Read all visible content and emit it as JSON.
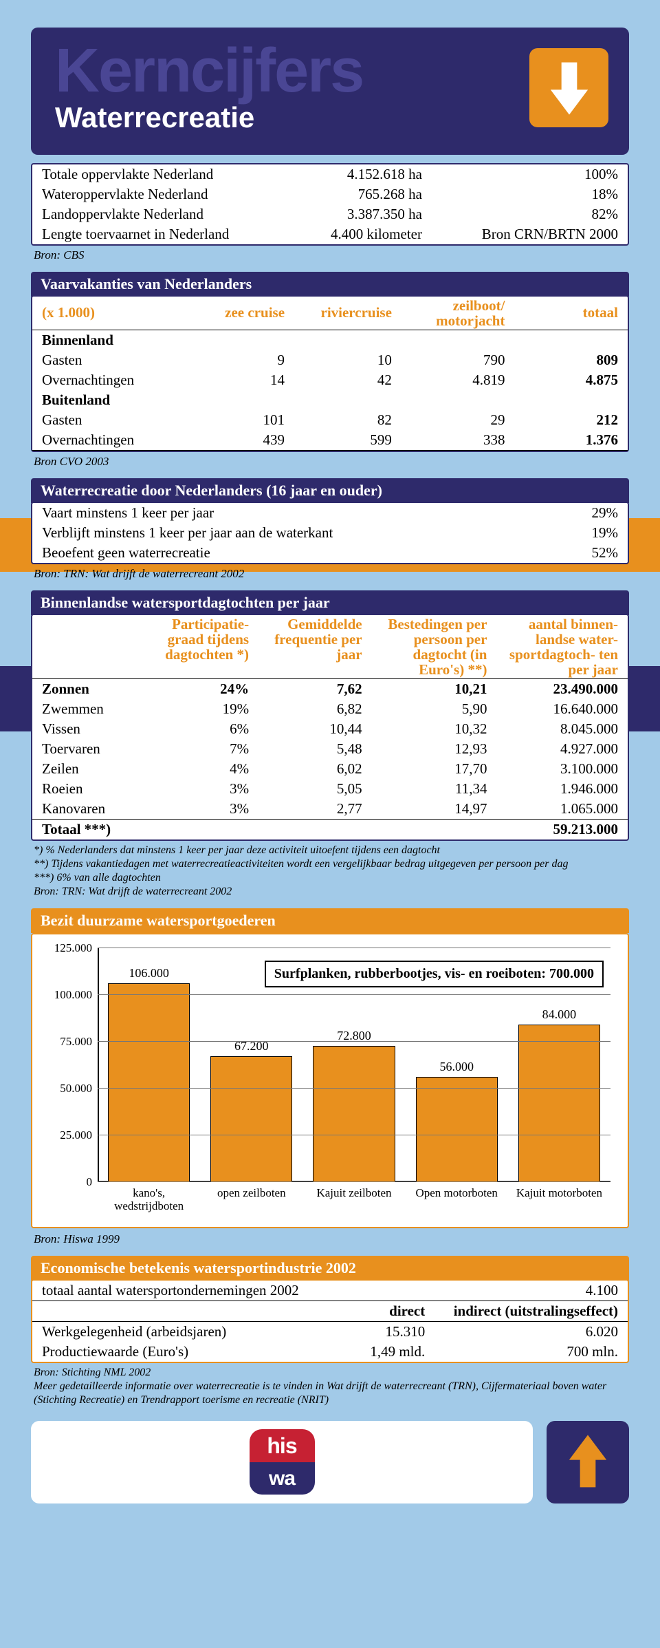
{
  "header": {
    "big": "Kerncijfers",
    "sub": "Waterrecreatie"
  },
  "surface": {
    "rows": [
      {
        "label": "Totale oppervlakte Nederland",
        "val": "4.152.618 ha",
        "pct": "100%"
      },
      {
        "label": "Wateroppervlakte Nederland",
        "val": "765.268 ha",
        "pct": "18%"
      },
      {
        "label": "Landoppervlakte Nederland",
        "val": "3.387.350 ha",
        "pct": "82%"
      },
      {
        "label": "Lengte toervaarnet in Nederland",
        "val": "4.400 kilometer",
        "pct": "Bron CRN/BRTN 2000"
      }
    ],
    "source": "Bron: CBS"
  },
  "vaarvakanties": {
    "title": "Vaarvakanties van Nederlanders",
    "unit": "(x 1.000)",
    "cols": [
      "zee cruise",
      "riviercruise",
      "zeilboot/ motorjacht",
      "totaal"
    ],
    "sections": [
      {
        "name": "Binnenland",
        "rows": [
          {
            "label": "Gasten",
            "v": [
              "9",
              "10",
              "790",
              "809"
            ]
          },
          {
            "label": "Overnachtingen",
            "v": [
              "14",
              "42",
              "4.819",
              "4.875"
            ]
          }
        ]
      },
      {
        "name": "Buitenland",
        "rows": [
          {
            "label": "Gasten",
            "v": [
              "101",
              "82",
              "29",
              "212"
            ]
          },
          {
            "label": "Overnachtingen",
            "v": [
              "439",
              "599",
              "338",
              "1.376"
            ]
          }
        ]
      }
    ],
    "source": "Bron CVO 2003"
  },
  "waterrecreatie": {
    "title": "Waterrecreatie door Nederlanders (16 jaar en ouder)",
    "rows": [
      {
        "label": "Vaart minstens 1 keer per jaar",
        "pct": "29%"
      },
      {
        "label": "Verblijft minstens 1 keer per jaar aan de waterkant",
        "pct": "19%"
      },
      {
        "label": "Beoefent geen waterrecreatie",
        "pct": "52%"
      }
    ],
    "source": "Bron: TRN: Wat drijft de waterrecreant 2002"
  },
  "dagtochten": {
    "title": "Binnenlandse watersportdagtochten per jaar",
    "cols": [
      "Participatie- graad tijdens dagtochten *)",
      "Gemiddelde frequentie per jaar",
      "Bestedingen per persoon per dagtocht (in Euro's) **)",
      "aantal binnen- landse water- sportdagtoch- ten per jaar"
    ],
    "rows": [
      {
        "label": "Zonnen",
        "v": [
          "24%",
          "7,62",
          "10,21",
          "23.490.000"
        ]
      },
      {
        "label": "Zwemmen",
        "v": [
          "19%",
          "6,82",
          "5,90",
          "16.640.000"
        ]
      },
      {
        "label": "Vissen",
        "v": [
          "6%",
          "10,44",
          "10,32",
          "8.045.000"
        ]
      },
      {
        "label": "Toervaren",
        "v": [
          "7%",
          "5,48",
          "12,93",
          "4.927.000"
        ]
      },
      {
        "label": "Zeilen",
        "v": [
          "4%",
          "6,02",
          "17,70",
          "3.100.000"
        ]
      },
      {
        "label": "Roeien",
        "v": [
          "3%",
          "5,05",
          "11,34",
          "1.946.000"
        ]
      },
      {
        "label": "Kanovaren",
        "v": [
          "3%",
          "2,77",
          "14,97",
          "1.065.000"
        ]
      }
    ],
    "total_label": "Totaal ***)",
    "total": "59.213.000",
    "footnotes": [
      "*)   % Nederlanders dat minstens 1 keer per jaar deze activiteit uitoefent tijdens een dagtocht",
      "**)  Tijdens vakantiedagen met waterrecreatieactiviteiten wordt een vergelijkbaar bedrag uitgegeven per persoon per dag",
      "***) 6% van alle dagtochten",
      "Bron:  TRN: Wat drijft de waterrecreant 2002"
    ]
  },
  "chart": {
    "title": "Bezit duurzame watersportgoederen",
    "note": "Surfplanken, rubberbootjes, vis- en roeiboten: 700.000",
    "ymax": 125000,
    "yticks": [
      0,
      25000,
      50000,
      75000,
      100000,
      125000
    ],
    "ytick_labels": [
      "0",
      "25.000",
      "50.000",
      "75.000",
      "100.000",
      "125.000"
    ],
    "bar_color": "#e8901e",
    "bars": [
      {
        "label": "kano's, wedstrijdboten",
        "val": 106000,
        "disp": "106.000"
      },
      {
        "label": "open zeilboten",
        "val": 67200,
        "disp": "67.200"
      },
      {
        "label": "Kajuit zeilboten",
        "val": 72800,
        "disp": "72.800"
      },
      {
        "label": "Open motorboten",
        "val": 56000,
        "disp": "56.000"
      },
      {
        "label": "Kajuit motorboten",
        "val": 84000,
        "disp": "84.000"
      }
    ],
    "source": "Bron:  Hiswa 1999"
  },
  "econ": {
    "title": "Economische betekenis watersportindustrie 2002",
    "row1_label": "totaal aantal watersportondernemingen 2002",
    "row1_val": "4.100",
    "cols": [
      "direct",
      "indirect (uitstralingseffect)"
    ],
    "rows": [
      {
        "label": "Werkgelegenheid (arbeidsjaren)",
        "v": [
          "15.310",
          "6.020"
        ]
      },
      {
        "label": "Productiewaarde (Euro's)",
        "v": [
          "1,49 mld.",
          "700 mln."
        ]
      }
    ],
    "source": "Bron:  Stichting NML 2002",
    "note": "Meer gedetailleerde informatie over waterrecreatie is te vinden in Wat drijft de waterrecreant (TRN), Cijfermateriaal boven water (Stichting Recreatie) en Trendrapport toerisme en recreatie (NRIT)"
  },
  "logo": {
    "top": "his",
    "bot": "wa"
  }
}
